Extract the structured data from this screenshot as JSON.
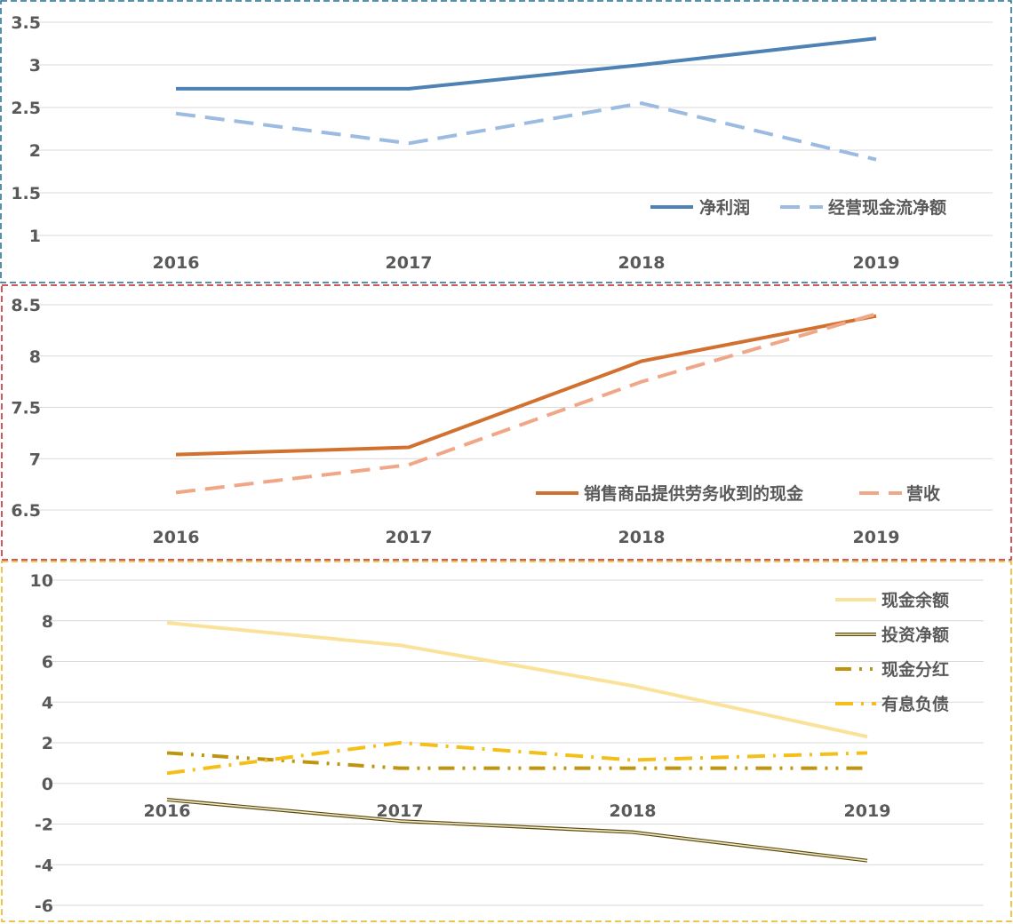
{
  "chart_data": [
    {
      "type": "line",
      "categories": [
        "2016",
        "2017",
        "2018",
        "2019"
      ],
      "ylim": [
        1,
        3.5
      ],
      "yticks": [
        "1",
        "1.5",
        "2",
        "2.5",
        "3",
        "3.5"
      ],
      "grid": true,
      "legend_placement": "bottom-right",
      "border_color": "#1f6b8e",
      "series": [
        {
          "name": "净利润",
          "values": [
            2.72,
            2.72,
            3.0,
            3.31
          ],
          "color": "#4e81b4",
          "style": "solid"
        },
        {
          "name": "经营现金流净额",
          "values": [
            2.43,
            2.08,
            2.55,
            1.89
          ],
          "color": "#9bbbe0",
          "style": "dash"
        }
      ]
    },
    {
      "type": "line",
      "categories": [
        "2016",
        "2017",
        "2018",
        "2019"
      ],
      "ylim": [
        6.5,
        8.5
      ],
      "yticks": [
        "6.5",
        "7",
        "7.5",
        "8",
        "8.5"
      ],
      "grid": true,
      "legend_placement": "bottom-right",
      "border_color": "#c0202a",
      "series": [
        {
          "name": "销售商品提供劳务收到的现金",
          "values": [
            7.04,
            7.11,
            7.95,
            8.39
          ],
          "color": "#d2712f",
          "style": "solid"
        },
        {
          "name": "营收",
          "values": [
            6.67,
            6.94,
            7.75,
            8.41
          ],
          "color": "#f0a788",
          "style": "dash"
        }
      ]
    },
    {
      "type": "line",
      "categories": [
        "2016",
        "2017",
        "2018",
        "2019"
      ],
      "ylim": [
        -6,
        10
      ],
      "yticks": [
        "-6",
        "-4",
        "-2",
        "0",
        "2",
        "4",
        "6",
        "8",
        "10"
      ],
      "grid": true,
      "legend_placement": "top-right",
      "border_color": "#e6b416",
      "series": [
        {
          "name": "现金余额",
          "values": [
            7.9,
            6.8,
            4.8,
            2.3
          ],
          "color": "#fbe29a",
          "style": "solid"
        },
        {
          "name": "投资净额",
          "values": [
            -0.8,
            -1.85,
            -2.4,
            -3.8
          ],
          "color": "#5c4a10",
          "style": "double"
        },
        {
          "name": "现金分红",
          "values": [
            1.5,
            0.75,
            0.75,
            0.75
          ],
          "color": "#bf9410",
          "style": "dash-dot-dot"
        },
        {
          "name": "有息负债",
          "values": [
            0.5,
            2.0,
            1.15,
            1.5
          ],
          "color": "#f5bf1a",
          "style": "dash-dot"
        }
      ]
    }
  ]
}
